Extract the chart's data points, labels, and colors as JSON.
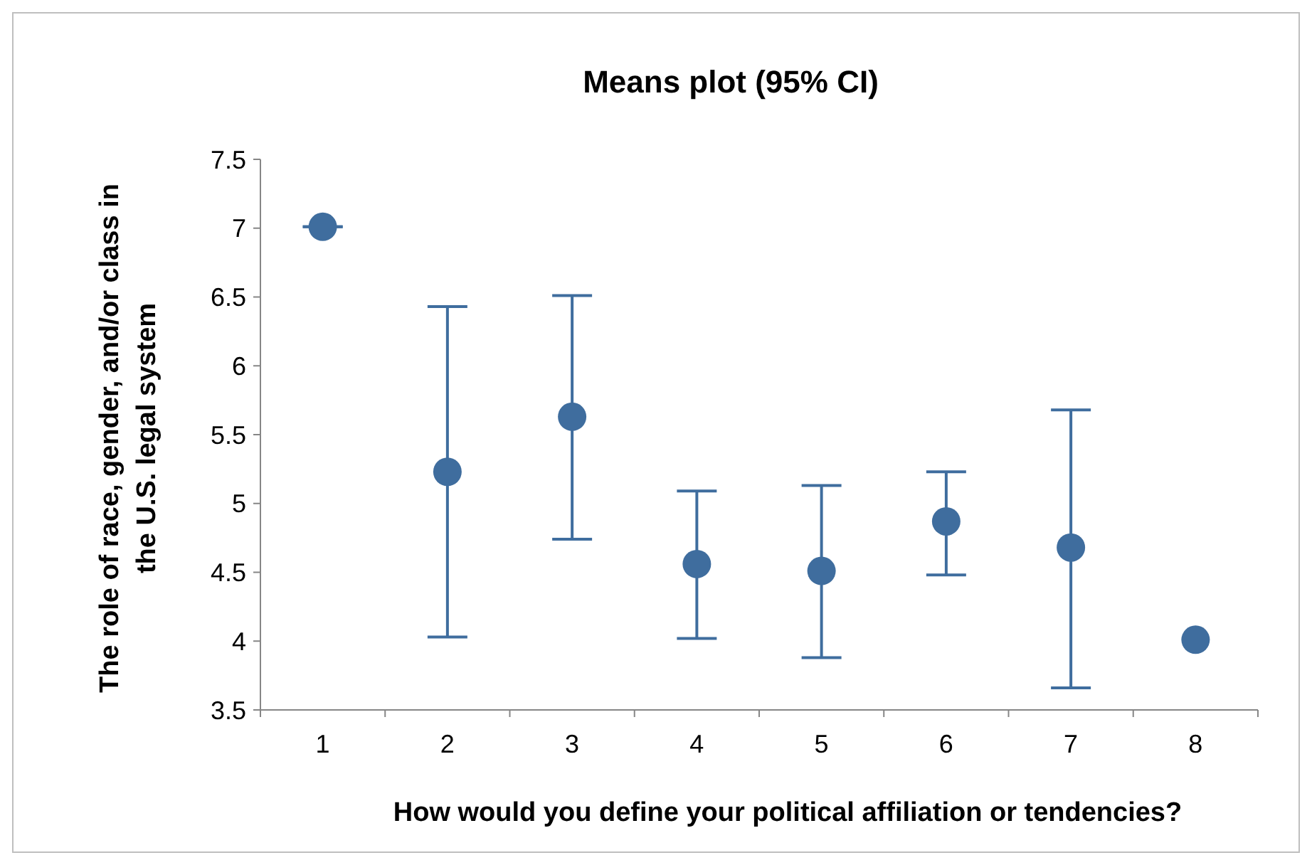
{
  "chart_data": {
    "type": "scatter",
    "title": "Means plot (95% CI)",
    "xlabel": "How would you define your political affiliation or tendencies?",
    "ylabel": "The role of race, gender, and/or class in the U.S. legal system",
    "categories": [
      "1",
      "2",
      "3",
      "4",
      "5",
      "6",
      "7",
      "8"
    ],
    "series": [
      {
        "color": "#3f6d9e",
        "values": [
          7.01,
          5.23,
          5.63,
          4.56,
          4.51,
          4.87,
          4.68,
          4.01
        ],
        "errors": [
          [
            7.01,
            7.01
          ],
          [
            4.03,
            6.43
          ],
          [
            4.74,
            6.51
          ],
          [
            4.02,
            5.09
          ],
          [
            3.88,
            5.13
          ],
          [
            4.48,
            5.23
          ],
          [
            3.66,
            5.68
          ],
          null
        ]
      }
    ],
    "ylim": [
      3.5,
      7.5
    ],
    "yticks": [
      3.5,
      4,
      4.5,
      5,
      5.5,
      6,
      6.5,
      7,
      7.5
    ],
    "marker": "circle",
    "grid": false
  }
}
